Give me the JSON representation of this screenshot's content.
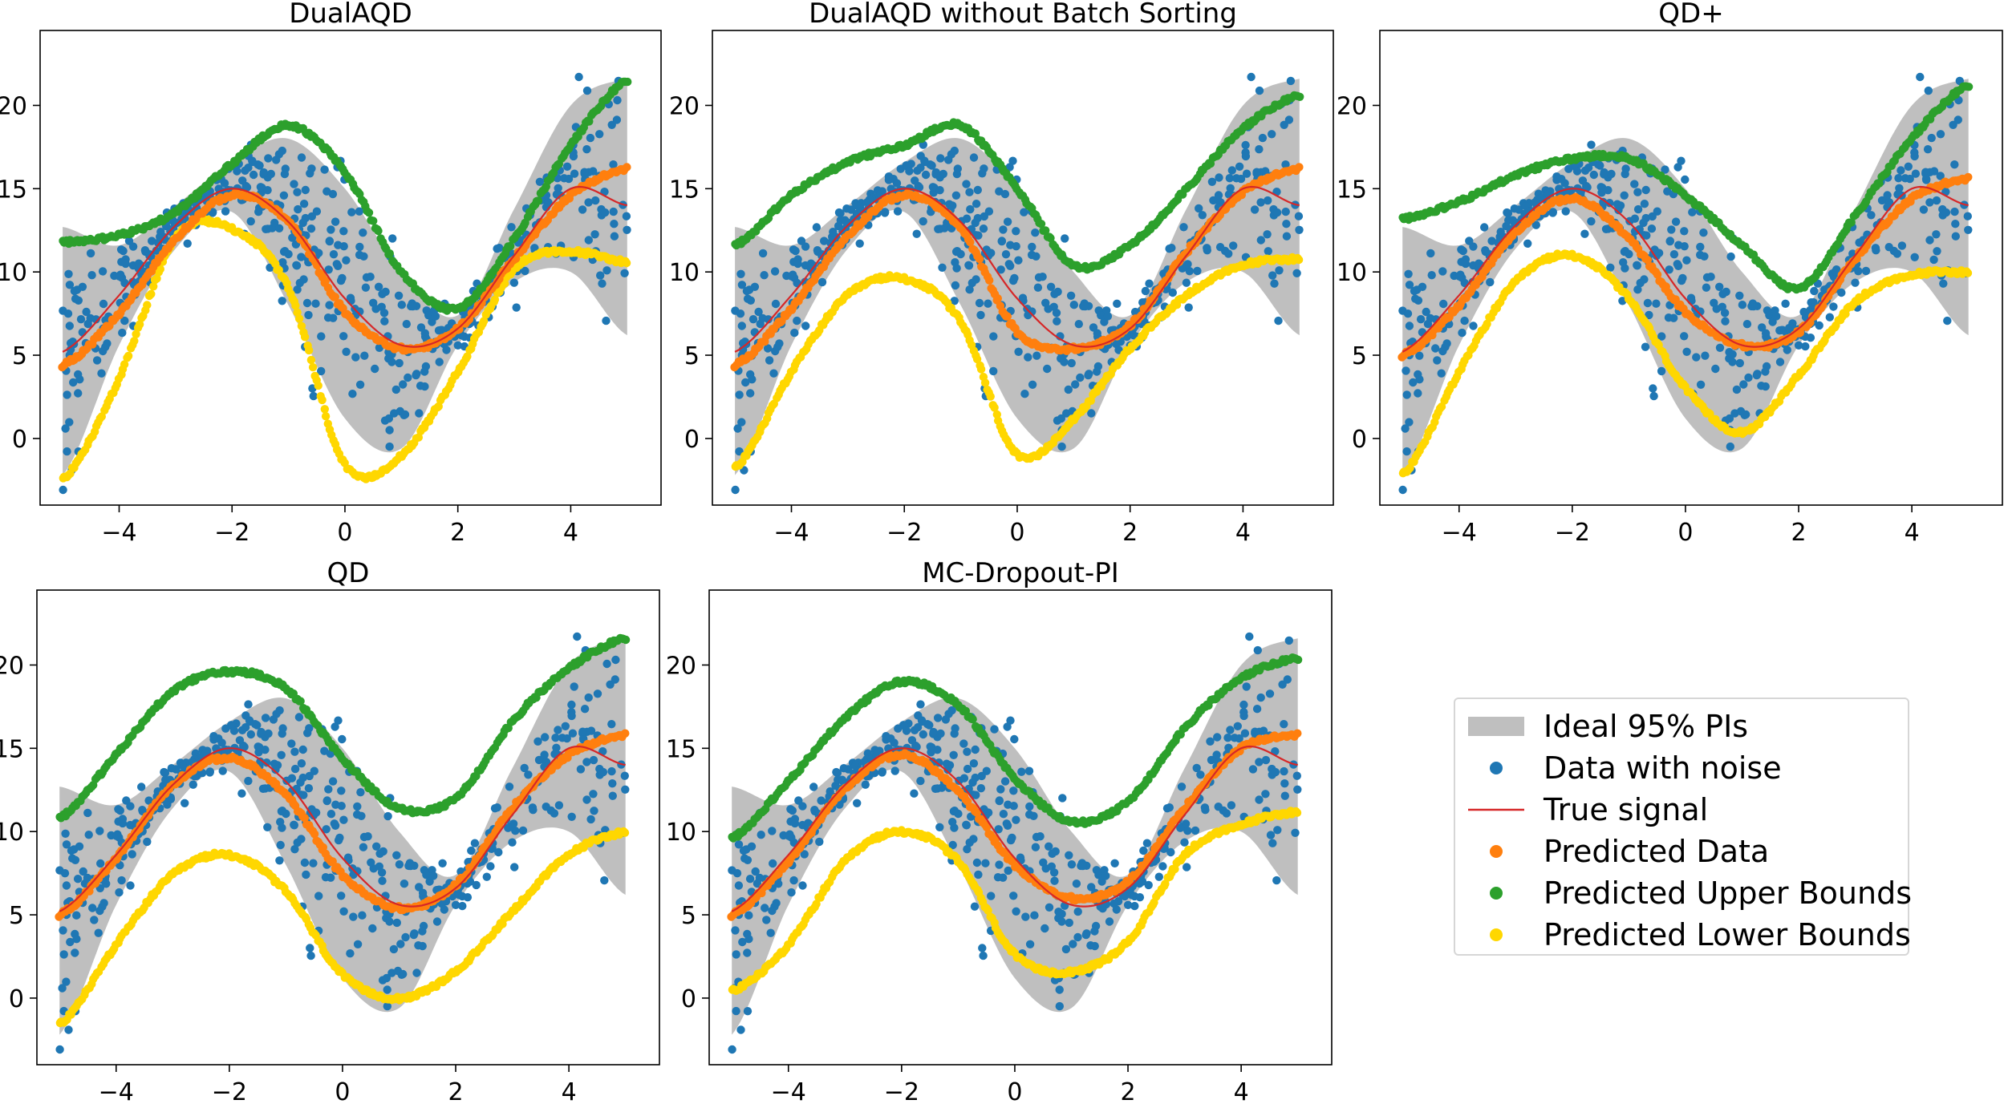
{
  "figure": {
    "type": "multi-panel-regression-intervals"
  },
  "colors": {
    "ideal_band": "#bfbfbf",
    "data_noise": "#1f77b4",
    "true_signal": "#d62728",
    "predicted": "#ff7f0e",
    "upper": "#2ca02c",
    "lower": "#ffd700"
  },
  "legend": {
    "entries": [
      {
        "label": "Ideal 95% PIs",
        "kind": "patch",
        "color": "#bfbfbf"
      },
      {
        "label": "Data with noise",
        "kind": "marker",
        "color": "#1f77b4"
      },
      {
        "label": "True signal",
        "kind": "line",
        "color": "#d62728"
      },
      {
        "label": "Predicted Data",
        "kind": "marker",
        "color": "#ff7f0e"
      },
      {
        "label": "Predicted Upper Bounds",
        "kind": "marker",
        "color": "#2ca02c"
      },
      {
        "label": "Predicted Lower Bounds",
        "kind": "marker",
        "color": "#ffd700"
      }
    ]
  },
  "chart_data": [
    {
      "type": "scatter",
      "title": "DualAQD",
      "xlim": [
        -5.4,
        5.6
      ],
      "ylim": [
        -4,
        24.5
      ],
      "xticks": [
        -4,
        -2,
        0,
        2,
        4
      ],
      "yticks": [
        0,
        5,
        10,
        15,
        20
      ],
      "xticklabels": [
        "−4",
        "−2",
        "0",
        "2",
        "4"
      ],
      "yticklabels": [
        "0",
        "5",
        "10",
        "15",
        "20"
      ],
      "true_signal": {
        "x": [
          -5,
          -4,
          -3,
          -2,
          -1,
          0,
          1,
          2,
          3,
          4,
          5
        ],
        "y": [
          5.2,
          8.6,
          12.8,
          15.0,
          13.0,
          8.4,
          5.6,
          6.6,
          11.0,
          15.0,
          14.0
        ]
      },
      "ideal_band": {
        "x": [
          -5,
          -4,
          -3,
          -2,
          -1,
          0,
          1,
          2,
          3,
          4,
          5
        ],
        "upper": [
          12.7,
          11.6,
          14.0,
          16.6,
          18.0,
          15.0,
          10.0,
          7.4,
          13.8,
          20.0,
          21.6
        ],
        "lower": [
          -2.2,
          5.6,
          11.4,
          13.6,
          8.0,
          1.2,
          -0.6,
          5.6,
          9.4,
          10.0,
          6.2
        ]
      },
      "predicted": {
        "x": [
          -5,
          -4,
          -3,
          -2,
          -1,
          0,
          1,
          2,
          3,
          4,
          5
        ],
        "y": [
          4.4,
          7.5,
          12.0,
          14.6,
          13.0,
          7.6,
          5.4,
          6.6,
          10.8,
          14.6,
          16.2
        ]
      },
      "upper": {
        "x": [
          -5,
          -4,
          -3,
          -2,
          -1,
          0,
          1,
          2,
          3,
          4,
          5
        ],
        "y": [
          11.8,
          12.2,
          13.6,
          16.5,
          18.8,
          16.0,
          10.0,
          7.8,
          12.0,
          17.6,
          21.5
        ]
      },
      "lower": {
        "x": [
          -5,
          -4,
          -3,
          -2,
          -1,
          0,
          1,
          2,
          3,
          4,
          5
        ],
        "y": [
          -2.5,
          3.6,
          12.0,
          12.6,
          9.0,
          -1.6,
          -1.0,
          4.0,
          10.2,
          11.2,
          10.6
        ]
      }
    },
    {
      "type": "scatter",
      "title": "DualAQD without Batch Sorting",
      "xlim": [
        -5.4,
        5.6
      ],
      "ylim": [
        -4,
        24.5
      ],
      "xticks": [
        -4,
        -2,
        0,
        2,
        4
      ],
      "yticks": [
        0,
        5,
        10,
        15,
        20
      ],
      "xticklabels": [
        "−4",
        "−2",
        "0",
        "2",
        "4"
      ],
      "yticklabels": [
        "0",
        "5",
        "10",
        "15",
        "20"
      ],
      "true_signal": {
        "x": [
          -5,
          -4,
          -3,
          -2,
          -1,
          0,
          1,
          2,
          3,
          4,
          5
        ],
        "y": [
          5.2,
          8.6,
          12.8,
          15.0,
          13.0,
          8.4,
          5.6,
          6.6,
          11.0,
          15.0,
          14.0
        ]
      },
      "ideal_band": {
        "x": [
          -5,
          -4,
          -3,
          -2,
          -1,
          0,
          1,
          2,
          3,
          4,
          5
        ],
        "upper": [
          12.7,
          11.6,
          14.0,
          16.6,
          18.0,
          15.0,
          10.0,
          7.4,
          13.8,
          20.0,
          21.6
        ],
        "lower": [
          -2.2,
          5.6,
          11.4,
          13.6,
          8.0,
          1.2,
          -0.6,
          5.6,
          9.4,
          10.0,
          6.2
        ]
      },
      "predicted": {
        "x": [
          -5,
          -4,
          -3,
          -2,
          -1,
          0,
          1,
          2,
          3,
          4,
          5
        ],
        "y": [
          4.4,
          7.8,
          12.2,
          14.6,
          12.6,
          6.4,
          5.4,
          6.8,
          11.2,
          14.8,
          16.2
        ]
      },
      "upper": {
        "x": [
          -5,
          -4,
          -3,
          -2,
          -1,
          0,
          1,
          2,
          3,
          4,
          5
        ],
        "y": [
          11.6,
          14.6,
          16.6,
          17.6,
          18.8,
          15.0,
          10.4,
          11.6,
          15.0,
          18.6,
          20.6
        ]
      },
      "lower": {
        "x": [
          -5,
          -4,
          -3,
          -2,
          -1,
          0,
          1,
          2,
          3,
          4,
          5
        ],
        "y": [
          -1.8,
          4.0,
          8.6,
          9.6,
          7.0,
          -1.0,
          1.2,
          5.4,
          8.6,
          10.4,
          10.8
        ]
      }
    },
    {
      "type": "scatter",
      "title": "QD+",
      "xlim": [
        -5.4,
        5.6
      ],
      "ylim": [
        -4,
        24.5
      ],
      "xticks": [
        -4,
        -2,
        0,
        2,
        4
      ],
      "yticks": [
        0,
        5,
        10,
        15,
        20
      ],
      "xticklabels": [
        "−4",
        "−2",
        "0",
        "2",
        "4"
      ],
      "yticklabels": [
        "0",
        "5",
        "10",
        "15",
        "20"
      ],
      "true_signal": {
        "x": [
          -5,
          -4,
          -3,
          -2,
          -1,
          0,
          1,
          2,
          3,
          4,
          5
        ],
        "y": [
          5.2,
          8.6,
          12.8,
          15.0,
          13.0,
          8.4,
          5.6,
          6.6,
          11.0,
          15.0,
          14.0
        ]
      },
      "ideal_band": {
        "x": [
          -5,
          -4,
          -3,
          -2,
          -1,
          0,
          1,
          2,
          3,
          4,
          5
        ],
        "upper": [
          12.7,
          11.6,
          14.0,
          16.6,
          18.0,
          15.0,
          10.0,
          7.4,
          13.8,
          20.0,
          21.6
        ],
        "lower": [
          -2.2,
          5.6,
          11.4,
          13.6,
          8.0,
          1.2,
          -0.6,
          5.6,
          9.4,
          10.0,
          6.2
        ]
      },
      "predicted": {
        "x": [
          -5,
          -4,
          -3,
          -2,
          -1,
          0,
          1,
          2,
          3,
          4,
          5
        ],
        "y": [
          5.0,
          8.0,
          12.4,
          14.4,
          12.0,
          7.6,
          5.6,
          6.4,
          10.8,
          14.4,
          15.6
        ]
      },
      "upper": {
        "x": [
          -5,
          -4,
          -3,
          -2,
          -1,
          0,
          1,
          2,
          3,
          4,
          5
        ],
        "y": [
          13.2,
          14.2,
          15.8,
          16.8,
          16.8,
          14.6,
          11.6,
          9.0,
          13.4,
          18.0,
          21.2
        ]
      },
      "lower": {
        "x": [
          -5,
          -4,
          -3,
          -2,
          -1,
          0,
          1,
          2,
          3,
          4,
          5
        ],
        "y": [
          -2.2,
          4.0,
          9.4,
          11.0,
          8.4,
          3.0,
          0.4,
          3.8,
          8.2,
          9.8,
          10.0
        ]
      }
    },
    {
      "type": "scatter",
      "title": "QD",
      "xlim": [
        -5.4,
        5.6
      ],
      "ylim": [
        -4,
        24.5
      ],
      "xticks": [
        -4,
        -2,
        0,
        2,
        4
      ],
      "yticks": [
        0,
        5,
        10,
        15,
        20
      ],
      "xticklabels": [
        "−4",
        "−2",
        "0",
        "2",
        "4"
      ],
      "yticklabels": [
        "0",
        "5",
        "10",
        "15",
        "20"
      ],
      "true_signal": {
        "x": [
          -5,
          -4,
          -3,
          -2,
          -1,
          0,
          1,
          2,
          3,
          4,
          5
        ],
        "y": [
          5.2,
          8.6,
          12.8,
          15.0,
          13.0,
          8.4,
          5.6,
          6.6,
          11.0,
          15.0,
          14.0
        ]
      },
      "ideal_band": {
        "x": [
          -5,
          -4,
          -3,
          -2,
          -1,
          0,
          1,
          2,
          3,
          4,
          5
        ],
        "upper": [
          12.7,
          11.6,
          14.0,
          16.6,
          18.0,
          15.0,
          10.0,
          7.4,
          13.8,
          20.0,
          21.6
        ],
        "lower": [
          -2.2,
          5.6,
          11.4,
          13.6,
          8.0,
          1.2,
          -0.6,
          5.6,
          9.4,
          10.0,
          6.2
        ]
      },
      "predicted": {
        "x": [
          -5,
          -4,
          -3,
          -2,
          -1,
          0,
          1,
          2,
          3,
          4,
          5
        ],
        "y": [
          5.0,
          8.4,
          12.8,
          14.4,
          12.2,
          7.4,
          5.4,
          6.8,
          11.4,
          14.6,
          15.8
        ]
      },
      "upper": {
        "x": [
          -5,
          -4,
          -3,
          -2,
          -1,
          0,
          1,
          2,
          3,
          4,
          5
        ],
        "y": [
          10.8,
          14.6,
          18.4,
          19.6,
          18.6,
          14.4,
          11.4,
          12.0,
          16.6,
          19.8,
          21.6
        ]
      },
      "lower": {
        "x": [
          -5,
          -4,
          -3,
          -2,
          -1,
          0,
          1,
          2,
          3,
          4,
          5
        ],
        "y": [
          -1.6,
          3.2,
          7.4,
          8.6,
          6.4,
          1.4,
          0.0,
          1.6,
          5.2,
          8.6,
          10.0
        ]
      }
    },
    {
      "type": "scatter",
      "title": "MC-Dropout-PI",
      "xlim": [
        -5.4,
        5.6
      ],
      "ylim": [
        -4,
        24.5
      ],
      "xticks": [
        -4,
        -2,
        0,
        2,
        4
      ],
      "yticks": [
        0,
        5,
        10,
        15,
        20
      ],
      "xticklabels": [
        "−4",
        "−2",
        "0",
        "2",
        "4"
      ],
      "yticklabels": [
        "0",
        "5",
        "10",
        "15",
        "20"
      ],
      "true_signal": {
        "x": [
          -5,
          -4,
          -3,
          -2,
          -1,
          0,
          1,
          2,
          3,
          4,
          5
        ],
        "y": [
          5.2,
          8.6,
          12.8,
          15.0,
          13.0,
          8.4,
          5.6,
          6.6,
          11.0,
          15.0,
          14.0
        ]
      },
      "ideal_band": {
        "x": [
          -5,
          -4,
          -3,
          -2,
          -1,
          0,
          1,
          2,
          3,
          4,
          5
        ],
        "upper": [
          12.7,
          11.6,
          14.0,
          16.6,
          18.0,
          15.0,
          10.0,
          7.4,
          13.8,
          20.0,
          21.6
        ],
        "lower": [
          -2.2,
          5.6,
          11.4,
          13.6,
          8.0,
          1.2,
          -0.6,
          5.6,
          9.4,
          10.0,
          6.2
        ]
      },
      "predicted": {
        "x": [
          -5,
          -4,
          -3,
          -2,
          -1,
          0,
          1,
          2,
          3,
          4,
          5
        ],
        "y": [
          5.0,
          8.2,
          12.6,
          14.6,
          12.4,
          8.0,
          6.0,
          7.0,
          11.4,
          15.0,
          15.8
        ]
      },
      "upper": {
        "x": [
          -5,
          -4,
          -3,
          -2,
          -1,
          0,
          1,
          2,
          3,
          4,
          5
        ],
        "y": [
          9.6,
          13.0,
          16.8,
          19.0,
          17.6,
          13.2,
          10.6,
          11.8,
          16.2,
          19.2,
          20.4
        ]
      },
      "lower": {
        "x": [
          -5,
          -4,
          -3,
          -2,
          -1,
          0,
          1,
          2,
          3,
          4,
          5
        ],
        "y": [
          0.4,
          3.2,
          8.2,
          10.0,
          8.2,
          2.6,
          1.6,
          3.4,
          8.6,
          10.4,
          11.2
        ]
      }
    }
  ]
}
